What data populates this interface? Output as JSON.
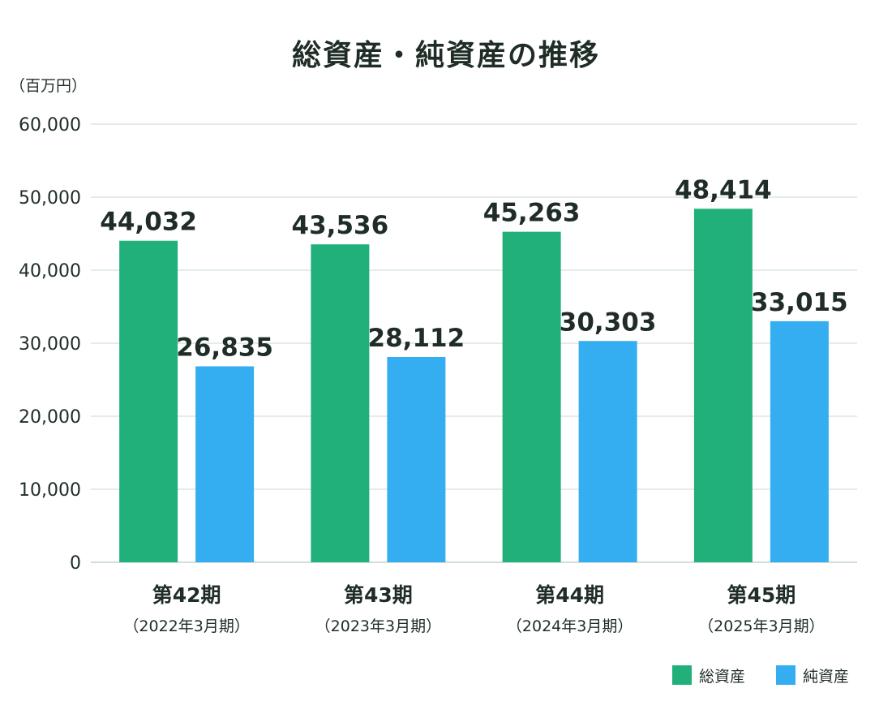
{
  "chart_data": {
    "type": "bar",
    "title": "総資産・純資産の推移",
    "unit_label": "（百万円）",
    "categories": [
      "第42期",
      "第43期",
      "第44期",
      "第45期"
    ],
    "category_sublabels": [
      "（2022年3月期）",
      "（2023年3月期）",
      "（2024年3月期）",
      "（2025年3月期）"
    ],
    "series": [
      {
        "name": "総資産",
        "color": "#22b07a",
        "values": [
          44032,
          43536,
          45263,
          48414
        ],
        "labels": [
          "44,032",
          "43,536",
          "45,263",
          "48,414"
        ]
      },
      {
        "name": "純資産",
        "color": "#34aef0",
        "values": [
          26835,
          28112,
          30303,
          33015
        ],
        "labels": [
          "26,835",
          "28,112",
          "30,303",
          "33,015"
        ]
      }
    ],
    "ylim": [
      0,
      60000
    ],
    "yticks": [
      0,
      10000,
      20000,
      30000,
      40000,
      50000,
      60000
    ],
    "ytick_labels": [
      "0",
      "10,000",
      "20,000",
      "30,000",
      "40,000",
      "50,000",
      "60,000"
    ],
    "grid": true,
    "legend_position": "bottom-right"
  }
}
